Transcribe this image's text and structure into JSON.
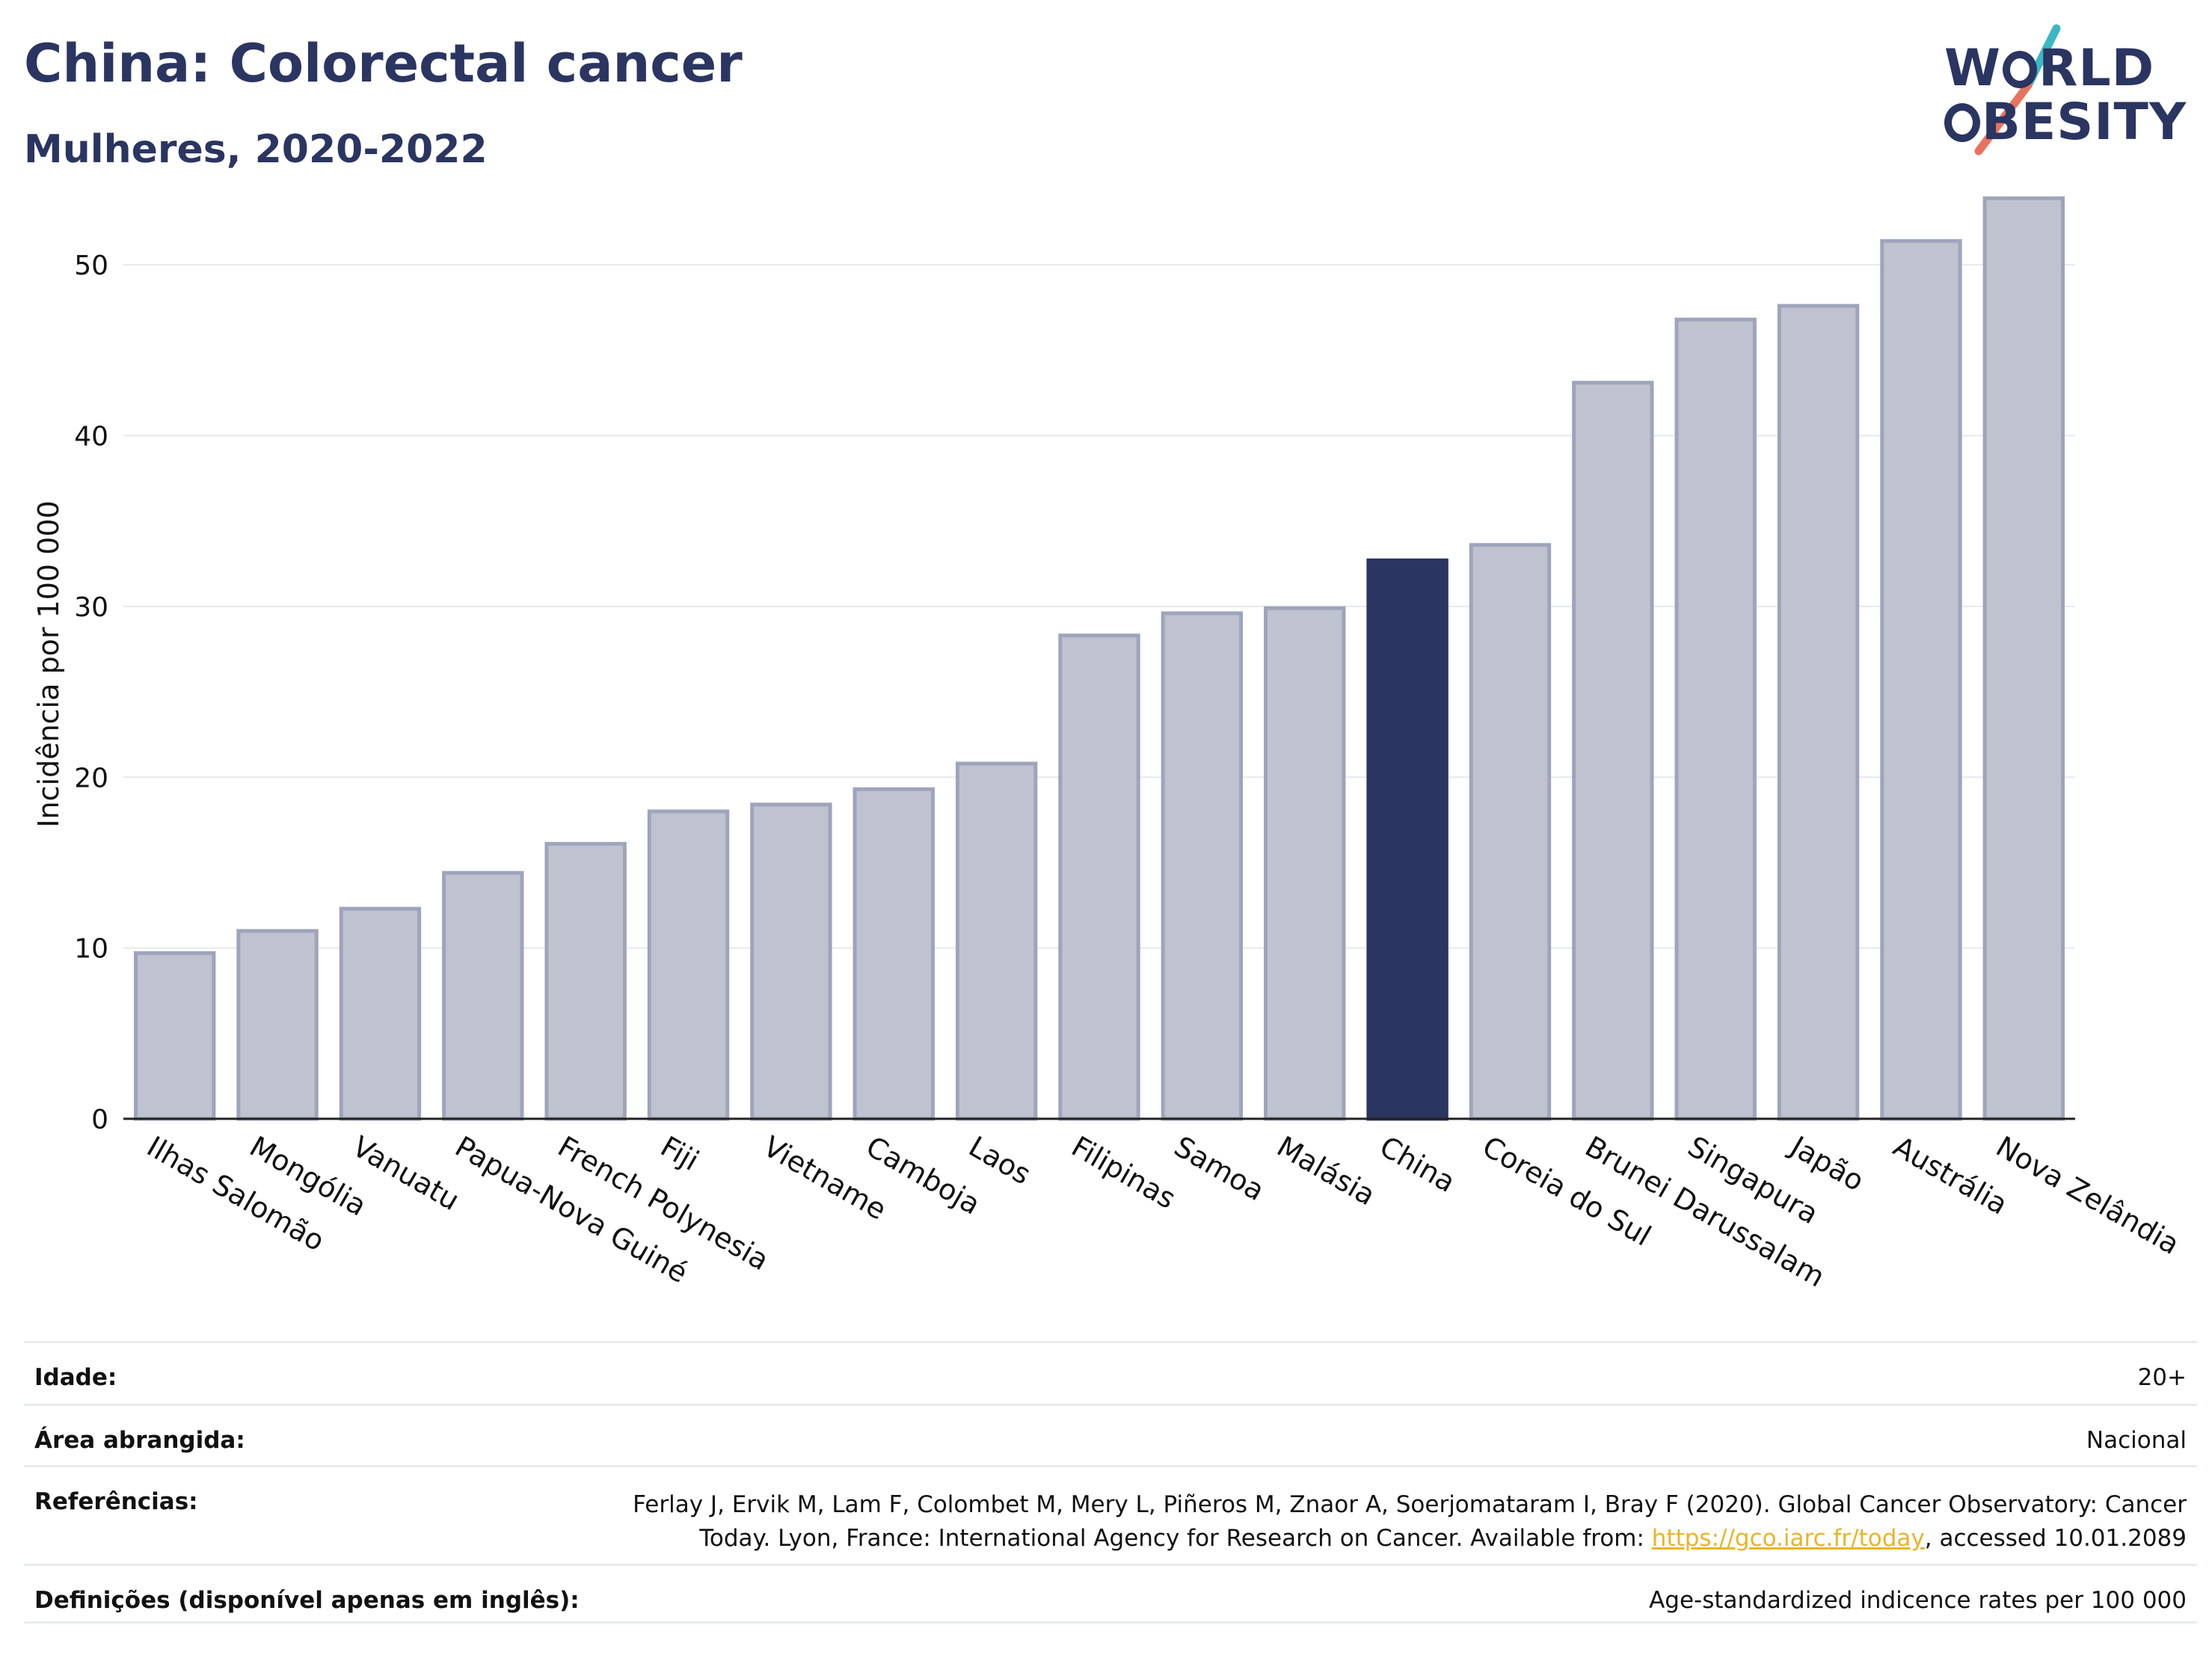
{
  "header": {
    "title": "China: Colorectal cancer",
    "subtitle": "Mulheres, 2020-2022"
  },
  "logo": {
    "line1": "WORLD",
    "line2": "OBESITY",
    "line1_tail": "RLD",
    "line2_tail": "BESITY",
    "text_color": "#2b3561",
    "accent_teal": "#3bb8c3",
    "accent_coral": "#e8735c"
  },
  "chart_data": {
    "type": "bar",
    "title": "China: Colorectal cancer",
    "subtitle": "Mulheres, 2020-2022",
    "xlabel": "",
    "ylabel": "Incidência por 100 000",
    "ylim": [
      0,
      55
    ],
    "yticks": [
      0,
      10,
      20,
      30,
      40,
      50
    ],
    "grid": true,
    "legend": "none",
    "highlight": "China",
    "colors": {
      "bar": "#bfc3d0",
      "bar_edge": "#9ea4bb",
      "highlight": "#2b3561",
      "grid": "#e6e9ee",
      "axis": "#222222"
    },
    "categories": [
      "Ilhas Salomão",
      "Mongólia",
      "Vanuatu",
      "Papua-Nova Guiné",
      "French Polynesia",
      "Fiji",
      "Vietname",
      "Camboja",
      "Laos",
      "Filipinas",
      "Samoa",
      "Malásia",
      "China",
      "Coreia do Sul",
      "Brunei Darussalam",
      "Singapura",
      "Japão",
      "Austrália",
      "Nova Zelândia"
    ],
    "values": [
      9.7,
      11.0,
      12.3,
      14.4,
      16.1,
      18.0,
      18.4,
      19.3,
      20.8,
      28.3,
      29.6,
      29.9,
      32.7,
      33.6,
      43.1,
      46.8,
      47.6,
      51.4,
      53.9
    ]
  },
  "footer": {
    "age_label": "Idade:",
    "age_value": "20+",
    "area_label": "Área abrangida:",
    "area_value": "Nacional",
    "ref_label": "Referências:",
    "ref_text_1": "Ferlay J, Ervik M, Lam F, Colombet M, Mery L, Piñeros M, Znaor A, Soerjomataram I, Bray F (2020). Global Cancer Observatory: Cancer Today. Lyon, France: International Agency for Research on Cancer. Available from: ",
    "ref_link": "https://gco.iarc.fr/today",
    "ref_text_2": ", accessed 10.01.2089",
    "def_label": "Definições (disponível apenas em inglês):",
    "def_value": "Age-standardized indicence rates per 100 000"
  }
}
